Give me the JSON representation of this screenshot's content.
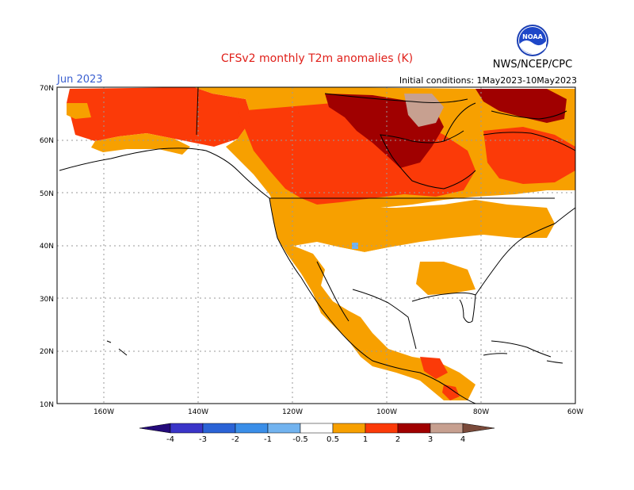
{
  "header": {
    "title": "CFSv2 monthly T2m anomalies (K)",
    "month": "Jun 2023",
    "initial_conditions": "Initial conditions: 1May2023-10May2023",
    "agency": "NWS/NCEP/CPC",
    "logo_text": "NOAA"
  },
  "map": {
    "region": "North America",
    "lat_labels": [
      "70N",
      "60N",
      "50N",
      "40N",
      "30N",
      "20N",
      "10N"
    ],
    "lon_labels": [
      "160W",
      "140W",
      "120W",
      "100W",
      "80W",
      "60W"
    ],
    "gridlines": true
  },
  "colorbar": {
    "labels": [
      "-4",
      "-3",
      "-2",
      "-1",
      "-0.5",
      "0.5",
      "1",
      "2",
      "3",
      "4"
    ],
    "colors": {
      "lt_-4": "#240a7a",
      "-4_-3": "#3a35c8",
      "-3_-2": "#2b63d6",
      "-2_-1": "#3a8ee8",
      "-1_-0.5": "#72b3ef",
      "-0.5_0.5": "#ffffff",
      "0.5_1": "#f7a000",
      "1_2": "#fb3a08",
      "2_3": "#a00000",
      "3_4": "#c7a090",
      "gt_4": "#7a4a3a"
    }
  }
}
